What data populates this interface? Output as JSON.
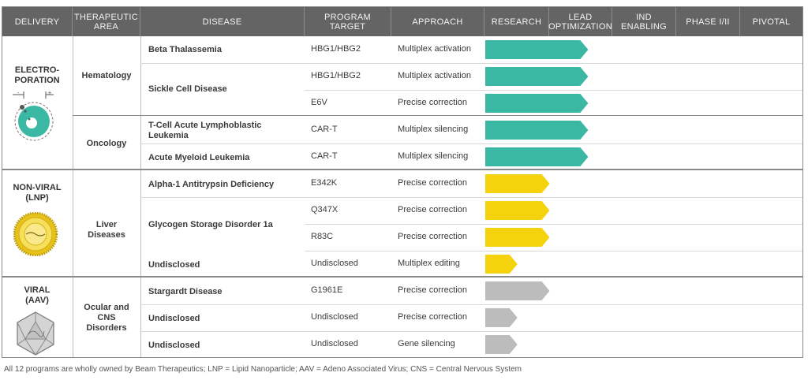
{
  "header": {
    "columns": [
      "DELIVERY",
      "THERAPEUTIC\nAREA",
      "DISEASE",
      "PROGRAM\nTARGET",
      "APPROACH",
      "RESEARCH",
      "LEAD\nOPTIMIZATION",
      "IND\nENABLING",
      "PHASE I/II",
      "PIVOTAL"
    ]
  },
  "delivery": [
    {
      "label": "ELECTRO-\nPORATION",
      "icon": "electroporation-cell-icon"
    },
    {
      "label": "NON-VIRAL\n(LNP)",
      "icon": "lipid-nanoparticle-icon"
    },
    {
      "label": "VIRAL\n(AAV)",
      "icon": "aav-capsid-icon"
    }
  ],
  "areas": [
    "Hematology",
    "Oncology",
    "Liver\nDiseases",
    "Ocular and\nCNS\nDisorders"
  ],
  "diseases": [
    "Beta Thalassemia",
    "Sickle Cell Disease",
    "T-Cell Acute Lymphoblastic\nLeukemia",
    "Acute Myeloid Leukemia",
    "Alpha-1 Antitrypsin Deficiency",
    "Glycogen Storage Disorder 1a",
    "Undisclosed",
    "Stargardt Disease",
    "Undisclosed",
    "Undisclosed"
  ],
  "chart_data": {
    "type": "table",
    "stages": [
      "RESEARCH",
      "LEAD OPTIMIZATION",
      "IND ENABLING",
      "PHASE I/II",
      "PIVOTAL"
    ],
    "programs": [
      {
        "target": "HBG1/HBG2",
        "approach": "Multiplex activation",
        "progress": 1.6,
        "color": "#3bb8a3"
      },
      {
        "target": "HBG1/HBG2",
        "approach": "Multiplex activation",
        "progress": 1.6,
        "color": "#3bb8a3"
      },
      {
        "target": "E6V",
        "approach": "Precise correction",
        "progress": 1.6,
        "color": "#3bb8a3"
      },
      {
        "target": "CAR-T",
        "approach": "Multiplex silencing",
        "progress": 1.6,
        "color": "#3bb8a3"
      },
      {
        "target": "CAR-T",
        "approach": "Multiplex silencing",
        "progress": 1.6,
        "color": "#3bb8a3"
      },
      {
        "target": "E342K",
        "approach": "Precise correction",
        "progress": 1.0,
        "color": "#f4d20c"
      },
      {
        "target": "Q347X",
        "approach": "Precise correction",
        "progress": 1.0,
        "color": "#f4d20c"
      },
      {
        "target": "R83C",
        "approach": "Precise correction",
        "progress": 1.0,
        "color": "#f4d20c"
      },
      {
        "target": "Undisclosed",
        "approach": "Multiplex editing",
        "progress": 0.5,
        "color": "#f4d20c"
      },
      {
        "target": "G1961E",
        "approach": "Precise correction",
        "progress": 1.0,
        "color": "#bcbcbc"
      },
      {
        "target": "Undisclosed",
        "approach": "Precise correction",
        "progress": 0.5,
        "color": "#bcbcbc"
      },
      {
        "target": "Undisclosed",
        "approach": "Gene silencing",
        "progress": 0.5,
        "color": "#bcbcbc"
      }
    ]
  },
  "footer": "All 12 programs are wholly owned by Beam Therapeutics;  LNP = Lipid Nanoparticle; AAV = Adeno Associated Virus; CNS = Central Nervous System"
}
